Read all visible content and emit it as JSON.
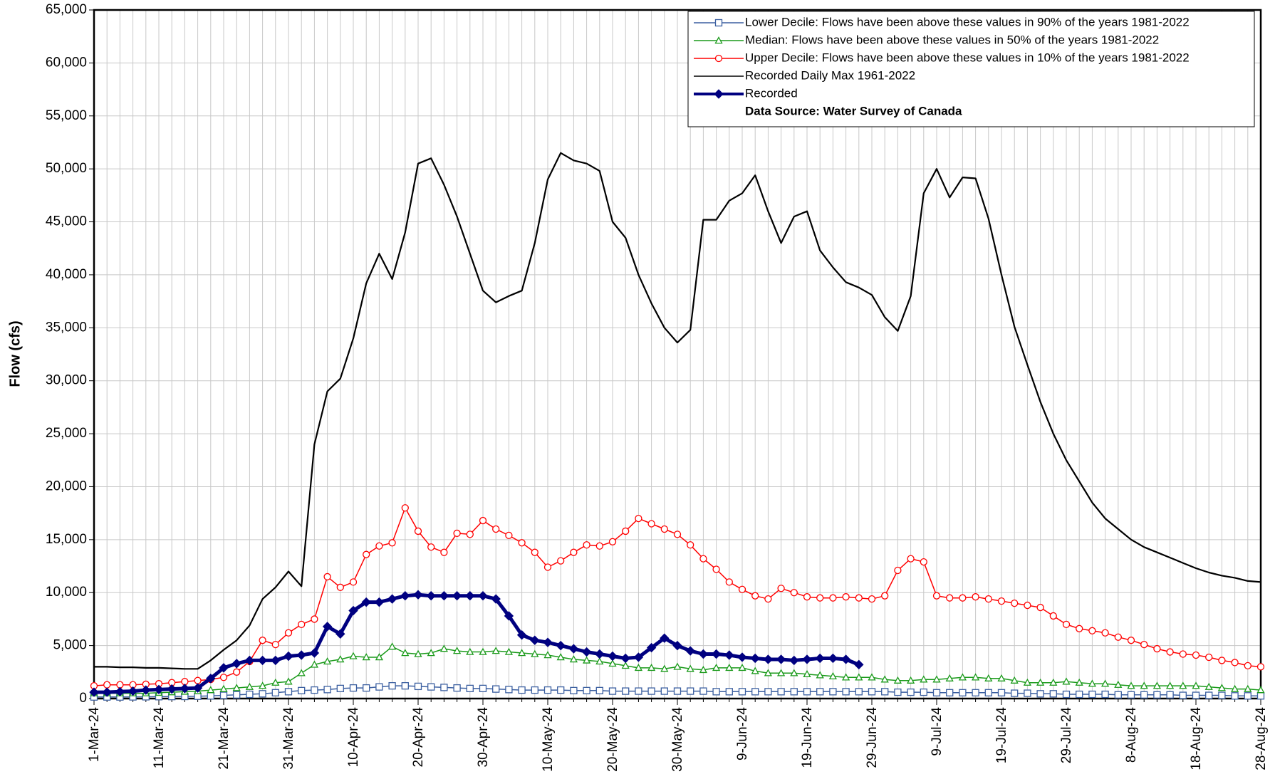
{
  "chart_data": {
    "type": "line",
    "ylabel": "Flow (cfs)",
    "note": "Data Source: Water Survey of Canada",
    "legend": "upper right",
    "grid": true,
    "categories": [
      "1-Mar-24",
      null,
      null,
      null,
      null,
      "11-Mar-24",
      null,
      null,
      null,
      null,
      "21-Mar-24",
      null,
      null,
      null,
      null,
      "31-Mar-24",
      null,
      null,
      null,
      null,
      "10-Apr-24",
      null,
      null,
      null,
      null,
      "20-Apr-24",
      null,
      null,
      null,
      null,
      "30-Apr-24",
      null,
      null,
      null,
      null,
      "10-May-24",
      null,
      null,
      null,
      null,
      "20-May-24",
      null,
      null,
      null,
      null,
      "30-May-24",
      null,
      null,
      null,
      null,
      "9-Jun-24",
      null,
      null,
      null,
      null,
      "19-Jun-24",
      null,
      null,
      null,
      null,
      "29-Jun-24",
      null,
      null,
      null,
      null,
      "9-Jul-24",
      null,
      null,
      null,
      null,
      "19-Jul-24",
      null,
      null,
      null,
      null,
      "29-Jul-24",
      null,
      null,
      null,
      null,
      "8-Aug-24",
      null,
      null,
      null,
      null,
      "18-Aug-24",
      null,
      null,
      null,
      null,
      "28-Aug-24"
    ],
    "ylim": [
      0,
      65000
    ],
    "yticks": [
      0,
      {
        "value": 5000,
        "label": "5,000"
      },
      {
        "value": 10000,
        "label": "10,000"
      },
      {
        "value": 15000,
        "label": "15,000"
      },
      {
        "value": 20000,
        "label": "20,000"
      },
      {
        "value": 25000,
        "label": "25,000"
      },
      {
        "value": 30000,
        "label": "30,000"
      },
      {
        "value": 35000,
        "label": "35,000"
      },
      {
        "value": 40000,
        "label": "40,000"
      },
      {
        "value": 45000,
        "label": "45,000"
      },
      {
        "value": 50000,
        "label": "50,000"
      },
      {
        "value": 55000,
        "label": "55,000"
      },
      {
        "value": 60000,
        "label": "60,000"
      },
      {
        "value": 65000,
        "label": "65,000"
      }
    ],
    "series": [
      {
        "name": "Lower Decile: Flows have been above these values in 90% of the years 1981-2022",
        "color": "#3b5fa0",
        "marker": "square",
        "values": [
          150,
          150,
          150,
          160,
          170,
          180,
          190,
          200,
          220,
          250,
          300,
          350,
          400,
          450,
          550,
          650,
          750,
          800,
          850,
          950,
          1000,
          1000,
          1100,
          1200,
          1200,
          1150,
          1100,
          1050,
          1000,
          950,
          950,
          900,
          850,
          800,
          800,
          800,
          800,
          750,
          750,
          750,
          700,
          700,
          700,
          700,
          700,
          700,
          700,
          700,
          650,
          650,
          650,
          650,
          650,
          650,
          650,
          650,
          650,
          650,
          650,
          650,
          650,
          650,
          600,
          600,
          600,
          550,
          550,
          550,
          550,
          550,
          550,
          500,
          500,
          450,
          450,
          400,
          400,
          400,
          400,
          350,
          350,
          350,
          350,
          350,
          300,
          300,
          300,
          300,
          250,
          250,
          250
        ]
      },
      {
        "name": "Median: Flows have been above these values in 50% of the years 1981-2022",
        "color": "#1a9a1a",
        "marker": "triangle",
        "values": [
          500,
          500,
          500,
          500,
          500,
          550,
          600,
          650,
          700,
          800,
          900,
          1000,
          1100,
          1200,
          1500,
          1600,
          2400,
          3200,
          3500,
          3700,
          4000,
          3900,
          3900,
          4900,
          4300,
          4200,
          4300,
          4700,
          4500,
          4400,
          4400,
          4500,
          4400,
          4300,
          4200,
          4100,
          3900,
          3700,
          3600,
          3500,
          3300,
          3100,
          2900,
          2900,
          2800,
          3000,
          2800,
          2700,
          2900,
          2900,
          2900,
          2600,
          2400,
          2400,
          2400,
          2300,
          2200,
          2100,
          2000,
          2000,
          2000,
          1800,
          1700,
          1700,
          1800,
          1800,
          1900,
          2000,
          2000,
          1900,
          1900,
          1700,
          1500,
          1500,
          1500,
          1600,
          1500,
          1400,
          1400,
          1300,
          1200,
          1200,
          1200,
          1200,
          1200,
          1200,
          1100,
          1000,
          900,
          900,
          800
        ]
      },
      {
        "name": "Upper Decile: Flows have been above these values in 10% of the years 1981-2022",
        "color": "#ff0000",
        "marker": "circle",
        "values": [
          1200,
          1300,
          1300,
          1300,
          1350,
          1400,
          1500,
          1600,
          1700,
          1800,
          2000,
          2500,
          3500,
          5500,
          5100,
          6200,
          7000,
          7500,
          11500,
          10500,
          11000,
          13600,
          14400,
          14700,
          18000,
          15800,
          14300,
          13800,
          15600,
          15500,
          16800,
          16000,
          15400,
          14700,
          13800,
          12400,
          13000,
          13800,
          14500,
          14400,
          14800,
          15800,
          17000,
          16500,
          16000,
          15500,
          14500,
          13200,
          12200,
          11000,
          10300,
          9700,
          9400,
          10400,
          10000,
          9600,
          9500,
          9500,
          9600,
          9500,
          9400,
          9700,
          12100,
          13200,
          12900,
          9700,
          9500,
          9500,
          9600,
          9400,
          9200,
          9000,
          8800,
          8600,
          7800,
          7000,
          6600,
          6400,
          6200,
          5800,
          5500,
          5100,
          4700,
          4400,
          4200,
          4100,
          3900,
          3600,
          3400,
          3100,
          3000
        ]
      },
      {
        "name": "Recorded Daily Max 1961-2022",
        "color": "#000000",
        "marker": "none",
        "values": [
          3000,
          3000,
          2950,
          2950,
          2900,
          2900,
          2850,
          2800,
          2800,
          3600,
          4600,
          5500,
          6900,
          9400,
          10500,
          12000,
          10600,
          24000,
          29000,
          30200,
          34000,
          39200,
          42000,
          39600,
          44000,
          50500,
          51000,
          48500,
          45500,
          42000,
          38500,
          37400,
          38000,
          38500,
          43000,
          49000,
          51500,
          50800,
          50500,
          49800,
          45000,
          43500,
          40000,
          37300,
          35000,
          33600,
          34800,
          45200,
          45200,
          47000,
          47700,
          49400,
          46000,
          43000,
          45500,
          46000,
          42300,
          40700,
          39300,
          38800,
          38100,
          36000,
          34700,
          38000,
          47700,
          50000,
          47300,
          49200,
          49100,
          45300,
          40000,
          35100,
          31500,
          28000,
          25000,
          22500,
          20500,
          18500,
          17000,
          16000,
          15000,
          14300,
          13800,
          13300,
          12800,
          12300,
          11900,
          11600,
          11400,
          11100,
          11000
        ]
      },
      {
        "name": "Recorded",
        "color": "#000080",
        "marker": "diamond",
        "values": [
          600,
          600,
          650,
          700,
          800,
          850,
          900,
          950,
          1000,
          1900,
          2900,
          3300,
          3600,
          3600,
          3600,
          4000,
          4100,
          4300,
          6800,
          6100,
          8300,
          9100,
          9100,
          9400,
          9700,
          9800,
          9700,
          9700,
          9700,
          9700,
          9700,
          9400,
          7800,
          6000,
          5500,
          5300,
          5000,
          4700,
          4400,
          4200,
          4000,
          3800,
          3900,
          4800,
          5700,
          5000,
          4500,
          4200,
          4200,
          4100,
          3900,
          3800,
          3700,
          3700,
          3600,
          3700,
          3800,
          3800,
          3700,
          3200,
          null,
          null,
          null,
          null,
          null,
          null,
          null,
          null,
          null,
          null,
          null,
          null,
          null,
          null,
          null,
          null,
          null,
          null,
          null,
          null,
          null,
          null,
          null,
          null,
          null,
          null,
          null,
          null,
          null,
          null,
          null
        ]
      }
    ]
  }
}
